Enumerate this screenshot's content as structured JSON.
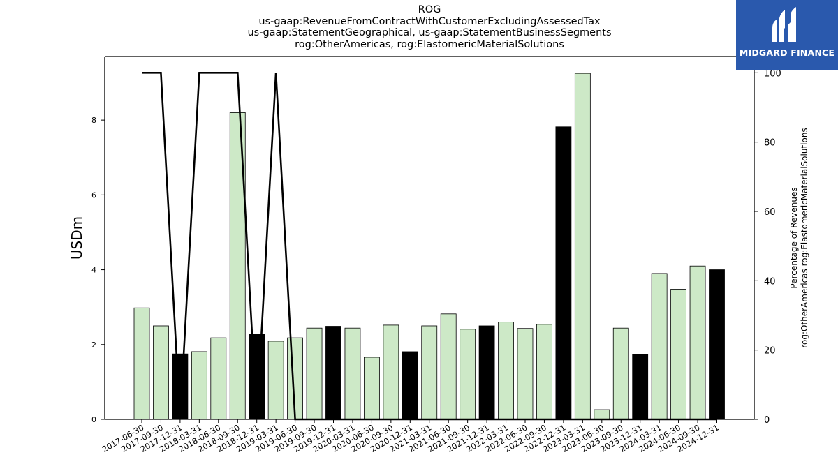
{
  "title_lines": [
    "ROG",
    "us-gaap:RevenueFromContractWithCustomerExcludingAssessedTax",
    "us-gaap:StatementGeographical, us-gaap:StatementBusinessSegments",
    "rog:OtherAmericas, rog:ElastomericMaterialSolutions"
  ],
  "logo": {
    "text": "MIDGARD FINANCE",
    "background": "#2a59ad"
  },
  "chart_data": {
    "type": "bar",
    "title": "ROG",
    "ylabel": "USDm",
    "y2label_lines": [
      "Percentage of Revenues",
      "rog:OtherAmericas rog:ElastomericMaterialSolutions"
    ],
    "ylim": [
      0,
      9.7
    ],
    "y2lim": [
      0,
      104.7
    ],
    "yticks": [
      0,
      2,
      4,
      6,
      8
    ],
    "y2ticks": [
      0,
      20,
      40,
      60,
      80,
      100
    ],
    "colors": {
      "light": "#cde9c7",
      "dark": "#000000",
      "line": "#000000"
    },
    "categories": [
      "2017-06-30",
      "2017-09-30",
      "2017-12-31",
      "2018-03-31",
      "2018-06-30",
      "2018-09-30",
      "2018-12-31",
      "2019-03-31",
      "2019-06-30",
      "2019-09-30",
      "2019-12-31",
      "2020-03-31",
      "2020-06-30",
      "2020-09-30",
      "2020-12-31",
      "2021-03-31",
      "2021-06-30",
      "2021-09-30",
      "2021-12-31",
      "2022-03-31",
      "2022-06-30",
      "2022-09-30",
      "2022-12-31",
      "2023-03-31",
      "2023-06-30",
      "2023-09-30",
      "2023-12-31",
      "2024-03-31",
      "2024-06-30",
      "2024-09-30",
      "2024-12-31"
    ],
    "series": [
      {
        "values": [
          2.98,
          2.5,
          1.75,
          1.81,
          2.18,
          8.2,
          2.28,
          2.09,
          2.18,
          2.44,
          2.49,
          2.44,
          1.66,
          2.52,
          1.81,
          2.5,
          2.82,
          2.41,
          2.5,
          2.6,
          2.43,
          2.54,
          7.82,
          9.25,
          0.26,
          2.44,
          1.74,
          3.9,
          3.48,
          4.1,
          4.0
        ],
        "year_end": [
          false,
          false,
          true,
          false,
          false,
          false,
          true,
          false,
          false,
          false,
          true,
          false,
          false,
          false,
          true,
          false,
          false,
          false,
          true,
          false,
          false,
          false,
          true,
          false,
          false,
          false,
          true,
          false,
          false,
          false,
          true
        ]
      },
      {
        "axis": "right",
        "type": "line",
        "values": [
          100,
          100,
          0,
          100,
          100,
          100,
          0,
          100,
          0,
          0,
          0,
          0,
          0,
          0,
          0,
          0,
          0,
          0,
          0,
          0,
          0,
          0,
          0,
          0,
          0,
          0,
          0,
          0,
          0,
          0,
          0
        ]
      }
    ],
    "grid": false
  }
}
